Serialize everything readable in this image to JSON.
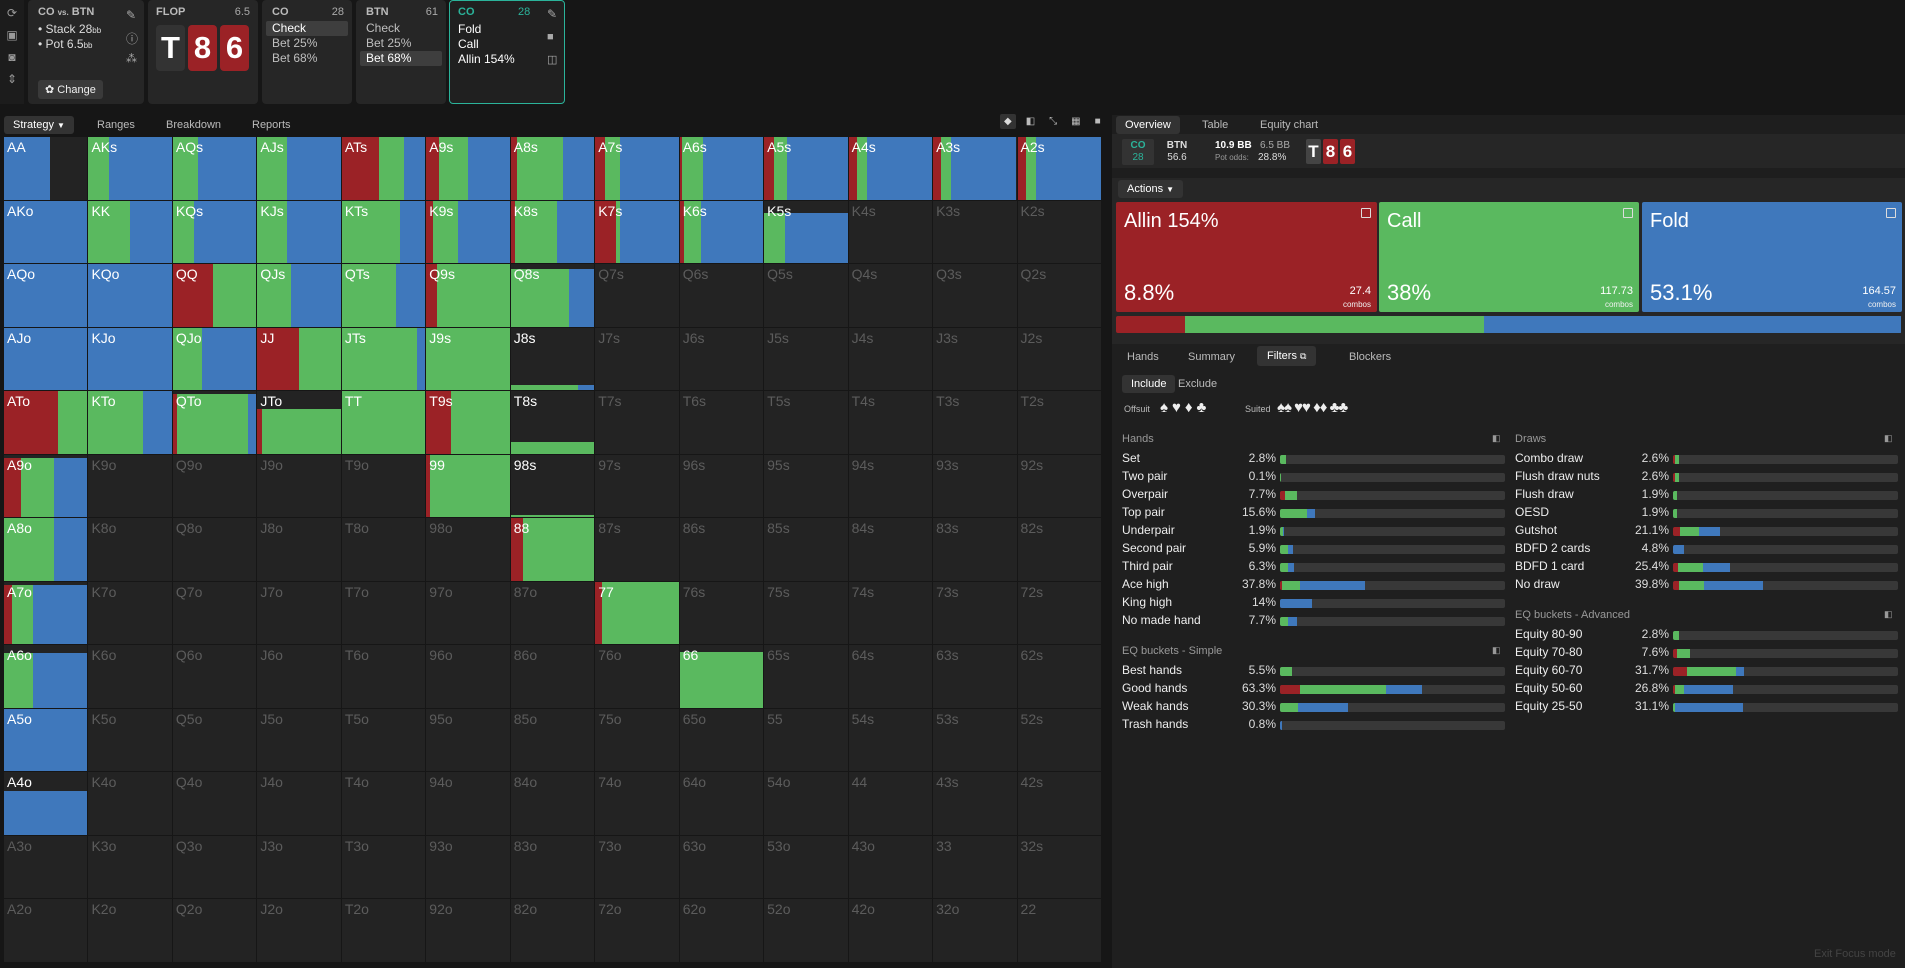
{
  "colors": {
    "allin": "#9b2226",
    "call": "#5ab95f",
    "fold": "#3f78bc",
    "empty": "#232323",
    "bg": "#161616"
  },
  "toolbar": {
    "icons": [
      "refresh-icon",
      "save-icon",
      "gamepad-icon",
      "expand-icon"
    ]
  },
  "spot": {
    "title": "CO",
    "vs": "vs.",
    "opp": "BTN",
    "stack": "Stack 28",
    "stack_unit": "bb",
    "pot": "Pot 6.5",
    "pot_unit": "bb",
    "change": "Change",
    "bullet": "•"
  },
  "flop": {
    "label": "FLOP",
    "pot": "6.5",
    "cards": [
      {
        "rank": "T",
        "suit": "spade"
      },
      {
        "rank": "8",
        "suit": "heart"
      },
      {
        "rank": "6",
        "suit": "heart"
      }
    ]
  },
  "co_node": {
    "label": "CO",
    "stack": "28",
    "options": [
      "Check",
      "Bet 25%",
      "Bet 68%"
    ],
    "selected": 0
  },
  "btn_node": {
    "label": "BTN",
    "stack": "61",
    "options": [
      "Check",
      "Bet 25%",
      "Bet 68%"
    ],
    "selected": 2
  },
  "cur_node": {
    "label": "CO",
    "stack": "28",
    "options": [
      "Fold",
      "Call",
      "Allin 154%"
    ]
  },
  "left_tabs": [
    "Strategy",
    "Ranges",
    "Breakdown",
    "Reports"
  ],
  "right_tabs": [
    "Overview",
    "Table",
    "Equity chart"
  ],
  "info": {
    "co": "CO",
    "co_val": "28",
    "btn": "BTN",
    "btn_val": "56.6",
    "bb1": "10.9 BB",
    "bb2": "6.5 BB",
    "pot_odds_label": "Pot odds:",
    "pot_odds": "28.8%",
    "board": [
      "T",
      "8",
      "6"
    ]
  },
  "actions_label": "Actions",
  "actions": [
    {
      "name": "Allin 154%",
      "pct": "8.8%",
      "combos": "27.4",
      "combos_label": "combos",
      "freq": 8.8
    },
    {
      "name": "Call",
      "pct": "38%",
      "combos": "117.73",
      "combos_label": "combos",
      "freq": 38
    },
    {
      "name": "Fold",
      "pct": "53.1%",
      "combos": "164.57",
      "combos_label": "combos",
      "freq": 53.1
    }
  ],
  "sub_tabs": [
    "Hands",
    "Summary",
    "Filters",
    "Blockers"
  ],
  "filters": {
    "include": "Include",
    "exclude": "Exclude",
    "offsuit": "Offsuit",
    "suited": "Suited"
  },
  "hands_section": "Hands",
  "hands": [
    {
      "l": "Set",
      "v": "2.8%",
      "a": 0,
      "c": 2.8,
      "f": 0
    },
    {
      "l": "Two pair",
      "v": "0.1%",
      "a": 0,
      "c": 0.1,
      "f": 0
    },
    {
      "l": "Overpair",
      "v": "7.7%",
      "a": 2,
      "c": 5.7,
      "f": 0
    },
    {
      "l": "Top pair",
      "v": "15.6%",
      "a": 0,
      "c": 12,
      "f": 3.6
    },
    {
      "l": "Underpair",
      "v": "1.9%",
      "a": 0,
      "c": 1.2,
      "f": 0.7
    },
    {
      "l": "Second pair",
      "v": "5.9%",
      "a": 0,
      "c": 3.5,
      "f": 2.4
    },
    {
      "l": "Third pair",
      "v": "6.3%",
      "a": 0,
      "c": 3.4,
      "f": 2.9
    },
    {
      "l": "Ace high",
      "v": "37.8%",
      "a": 1,
      "c": 8,
      "f": 28.8
    },
    {
      "l": "King high",
      "v": "14%",
      "a": 0,
      "c": 0,
      "f": 14
    },
    {
      "l": "No made hand",
      "v": "7.7%",
      "a": 0,
      "c": 3.5,
      "f": 4.2
    }
  ],
  "eq_simple_section": "EQ buckets - Simple",
  "eq_simple": [
    {
      "l": "Best hands",
      "v": "5.5%",
      "a": 0,
      "c": 5.5,
      "f": 0
    },
    {
      "l": "Good hands",
      "v": "63.3%",
      "a": 9,
      "c": 38,
      "f": 16.3
    },
    {
      "l": "Weak hands",
      "v": "30.3%",
      "a": 0,
      "c": 8,
      "f": 22.3
    },
    {
      "l": "Trash hands",
      "v": "0.8%",
      "a": 0,
      "c": 0,
      "f": 0.8
    }
  ],
  "draws_section": "Draws",
  "draws": [
    {
      "l": "Combo draw",
      "v": "2.6%",
      "a": 0.8,
      "c": 1.8,
      "f": 0
    },
    {
      "l": "Flush draw nuts",
      "v": "2.6%",
      "a": 0.8,
      "c": 1.8,
      "f": 0
    },
    {
      "l": "Flush draw",
      "v": "1.9%",
      "a": 0,
      "c": 1.9,
      "f": 0
    },
    {
      "l": "OESD",
      "v": "1.9%",
      "a": 0,
      "c": 1.9,
      "f": 0
    },
    {
      "l": "Gutshot",
      "v": "21.1%",
      "a": 3,
      "c": 8.5,
      "f": 9.6
    },
    {
      "l": "BDFD 2 cards",
      "v": "4.8%",
      "a": 0,
      "c": 0,
      "f": 4.8
    },
    {
      "l": "BDFD 1 card",
      "v": "25.4%",
      "a": 2.4,
      "c": 11,
      "f": 12
    },
    {
      "l": "No draw",
      "v": "39.8%",
      "a": 2.8,
      "c": 11,
      "f": 26
    }
  ],
  "eq_adv_section": "EQ buckets - Advanced",
  "eq_adv": [
    {
      "l": "Equity 80-90",
      "v": "2.8%",
      "a": 0,
      "c": 2.8,
      "f": 0
    },
    {
      "l": "Equity 70-80",
      "v": "7.6%",
      "a": 1.6,
      "c": 6,
      "f": 0
    },
    {
      "l": "Equity 60-70",
      "v": "31.7%",
      "a": 6,
      "c": 22,
      "f": 3.7
    },
    {
      "l": "Equity 50-60",
      "v": "26.8%",
      "a": 1,
      "c": 4,
      "f": 21.8
    },
    {
      "l": "Equity 25-50",
      "v": "31.1%",
      "a": 0,
      "c": 0.8,
      "f": 30.3
    }
  ],
  "footer": "Exit Focus mode",
  "grid": {
    "labels": [
      [
        "AA",
        "AKs",
        "AQs",
        "AJs",
        "ATs",
        "A9s",
        "A8s",
        "A7s",
        "A6s",
        "A5s",
        "A4s",
        "A3s",
        "A2s"
      ],
      [
        "AKo",
        "KK",
        "KQs",
        "KJs",
        "KTs",
        "K9s",
        "K8s",
        "K7s",
        "K6s",
        "K5s",
        "K4s",
        "K3s",
        "K2s"
      ],
      [
        "AQo",
        "KQo",
        "QQ",
        "QJs",
        "QTs",
        "Q9s",
        "Q8s",
        "Q7s",
        "Q6s",
        "Q5s",
        "Q4s",
        "Q3s",
        "Q2s"
      ],
      [
        "AJo",
        "KJo",
        "QJo",
        "JJ",
        "JTs",
        "J9s",
        "J8s",
        "J7s",
        "J6s",
        "J5s",
        "J4s",
        "J3s",
        "J2s"
      ],
      [
        "ATo",
        "KTo",
        "QTo",
        "JTo",
        "TT",
        "T9s",
        "T8s",
        "T7s",
        "T6s",
        "T5s",
        "T4s",
        "T3s",
        "T2s"
      ],
      [
        "A9o",
        "K9o",
        "Q9o",
        "J9o",
        "T9o",
        "99",
        "98s",
        "97s",
        "96s",
        "95s",
        "94s",
        "93s",
        "92s"
      ],
      [
        "A8o",
        "K8o",
        "Q8o",
        "J8o",
        "T8o",
        "98o",
        "88",
        "87s",
        "86s",
        "85s",
        "84s",
        "83s",
        "82s"
      ],
      [
        "A7o",
        "K7o",
        "Q7o",
        "J7o",
        "T7o",
        "97o",
        "87o",
        "77",
        "76s",
        "75s",
        "74s",
        "73s",
        "72s"
      ],
      [
        "A6o",
        "K6o",
        "Q6o",
        "J6o",
        "T6o",
        "96o",
        "86o",
        "76o",
        "66",
        "65s",
        "64s",
        "63s",
        "62s"
      ],
      [
        "A5o",
        "K5o",
        "Q5o",
        "J5o",
        "T5o",
        "95o",
        "85o",
        "75o",
        "65o",
        "55",
        "54s",
        "53s",
        "52s"
      ],
      [
        "A4o",
        "K4o",
        "Q4o",
        "J4o",
        "T4o",
        "94o",
        "84o",
        "74o",
        "64o",
        "54o",
        "44",
        "43s",
        "42s"
      ],
      [
        "A3o",
        "K3o",
        "Q3o",
        "J3o",
        "T3o",
        "93o",
        "83o",
        "73o",
        "63o",
        "53o",
        "43o",
        "33",
        "32s"
      ],
      [
        "A2o",
        "K2o",
        "Q2o",
        "J2o",
        "T2o",
        "92o",
        "82o",
        "72o",
        "62o",
        "52o",
        "42o",
        "32o",
        "22"
      ]
    ],
    "strategy": {
      "AA": [
        1,
        0,
        0,
        0.55,
        0.45
      ],
      "AKs": [
        1,
        0,
        0.25,
        0.75
      ],
      "AQs": [
        1,
        0,
        0.3,
        0.7
      ],
      "AJs": [
        1,
        0,
        0.35,
        0.65
      ],
      "ATs": [
        1,
        0.45,
        0.3,
        0.25
      ],
      "A9s": [
        1,
        0.15,
        0.35,
        0.5
      ],
      "A8s": [
        1,
        0.08,
        0.55,
        0.37
      ],
      "A7s": [
        1,
        0.12,
        0.18,
        0.7
      ],
      "A6s": [
        1,
        0.03,
        0.25,
        0.72
      ],
      "A5s": [
        1,
        0.12,
        0.15,
        0.73
      ],
      "A4s": [
        1,
        0.1,
        0.12,
        0.78
      ],
      "A3s": [
        1,
        0.1,
        0.12,
        0.78
      ],
      "A2s": [
        1,
        0.1,
        0.12,
        0.78
      ],
      "AKo": [
        1,
        0,
        0,
        1
      ],
      "KK": [
        1,
        0,
        0.5,
        0.5
      ],
      "KQs": [
        1,
        0,
        0.25,
        0.75
      ],
      "KJs": [
        1,
        0,
        0.35,
        0.65
      ],
      "KTs": [
        1,
        0,
        0.7,
        0.3
      ],
      "K9s": [
        1,
        0.08,
        0.3,
        0.62
      ],
      "K8s": [
        1,
        0.05,
        0.5,
        0.45
      ],
      "K7s": [
        1,
        0.25,
        0.05,
        0.7
      ],
      "K6s": [
        1,
        0.05,
        0.2,
        0.75
      ],
      "K5s": [
        0.8,
        0,
        0.25,
        0.75
      ],
      "AQo": [
        1,
        0,
        0,
        1
      ],
      "KQo": [
        1,
        0,
        0,
        1
      ],
      "QQ": [
        1,
        0.48,
        0.52,
        0
      ],
      "QJs": [
        1,
        0,
        0.4,
        0.6
      ],
      "QTs": [
        1,
        0,
        0.65,
        0.35
      ],
      "Q9s": [
        1,
        0.13,
        0.87,
        0
      ],
      "Q8s": [
        0.92,
        0,
        0.7,
        0.3
      ],
      "AJo": [
        1,
        0,
        0,
        1
      ],
      "KJo": [
        1,
        0,
        0,
        1
      ],
      "QJo": [
        1,
        0,
        0.35,
        0.65
      ],
      "JJ": [
        1,
        0.5,
        0.5,
        0
      ],
      "JTs": [
        1,
        0,
        0.9,
        0.1
      ],
      "J9s": [
        1,
        0,
        1,
        0
      ],
      "J8s": [
        0.08,
        0,
        0.8,
        0.2
      ],
      "ATo": [
        1,
        0.65,
        0.35,
        0
      ],
      "KTo": [
        1,
        0,
        0.65,
        0.35
      ],
      "QTo": [
        0.95,
        0.05,
        0.85,
        0.1
      ],
      "JTo": [
        0.72,
        0.05,
        0.95,
        0
      ],
      "TT": [
        1,
        0,
        1,
        0
      ],
      "T9s": [
        1,
        0.3,
        0.7,
        0
      ],
      "T8s": [
        0.18,
        0,
        1,
        0
      ],
      "A9o": [
        0.95,
        0.2,
        0.4,
        0.4
      ],
      "99": [
        1,
        0.05,
        0.95,
        0
      ],
      "98s": [
        0.04,
        0,
        1,
        0
      ],
      "A8o": [
        1,
        0,
        0.6,
        0.4
      ],
      "88": [
        1,
        0.15,
        0.85,
        0
      ],
      "A7o": [
        0.95,
        0.1,
        0.25,
        0.65
      ],
      "77": [
        1,
        0.08,
        0.92,
        0
      ],
      "A6o": [
        0.88,
        0,
        0.35,
        0.65
      ],
      "66": [
        0.9,
        0,
        1,
        0
      ],
      "A5o": [
        1,
        0,
        0,
        1
      ],
      "A4o": [
        0.7,
        0,
        0,
        1
      ]
    }
  }
}
